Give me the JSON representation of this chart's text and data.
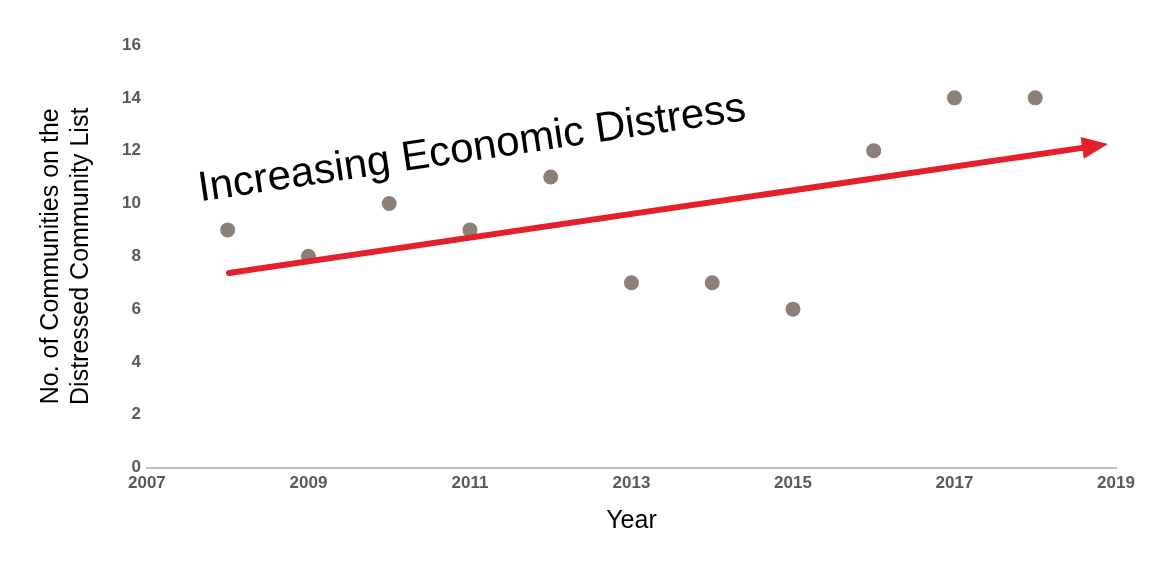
{
  "chart_data": {
    "type": "scatter",
    "xlabel": "Year",
    "ylabel": "No. of Communities on the Distressed Community List",
    "x": [
      2008,
      2009,
      2010,
      2011,
      2012,
      2013,
      2014,
      2015,
      2016,
      2017,
      2018
    ],
    "series": [
      {
        "color": "#8c8078",
        "values": [
          9,
          8,
          10,
          9,
          11,
          7,
          7,
          6,
          12,
          14,
          14
        ]
      }
    ],
    "xlim": [
      2007,
      2019
    ],
    "xticks": [
      2007,
      2009,
      2011,
      2013,
      2015,
      2017,
      2019
    ],
    "ylim": [
      0,
      16
    ],
    "yticks": [
      0,
      2,
      4,
      6,
      8,
      10,
      12,
      14,
      16
    ],
    "grid": false,
    "legend": false,
    "marker": "circle",
    "annotations": [
      "Increasing Economic Distress"
    ]
  }
}
